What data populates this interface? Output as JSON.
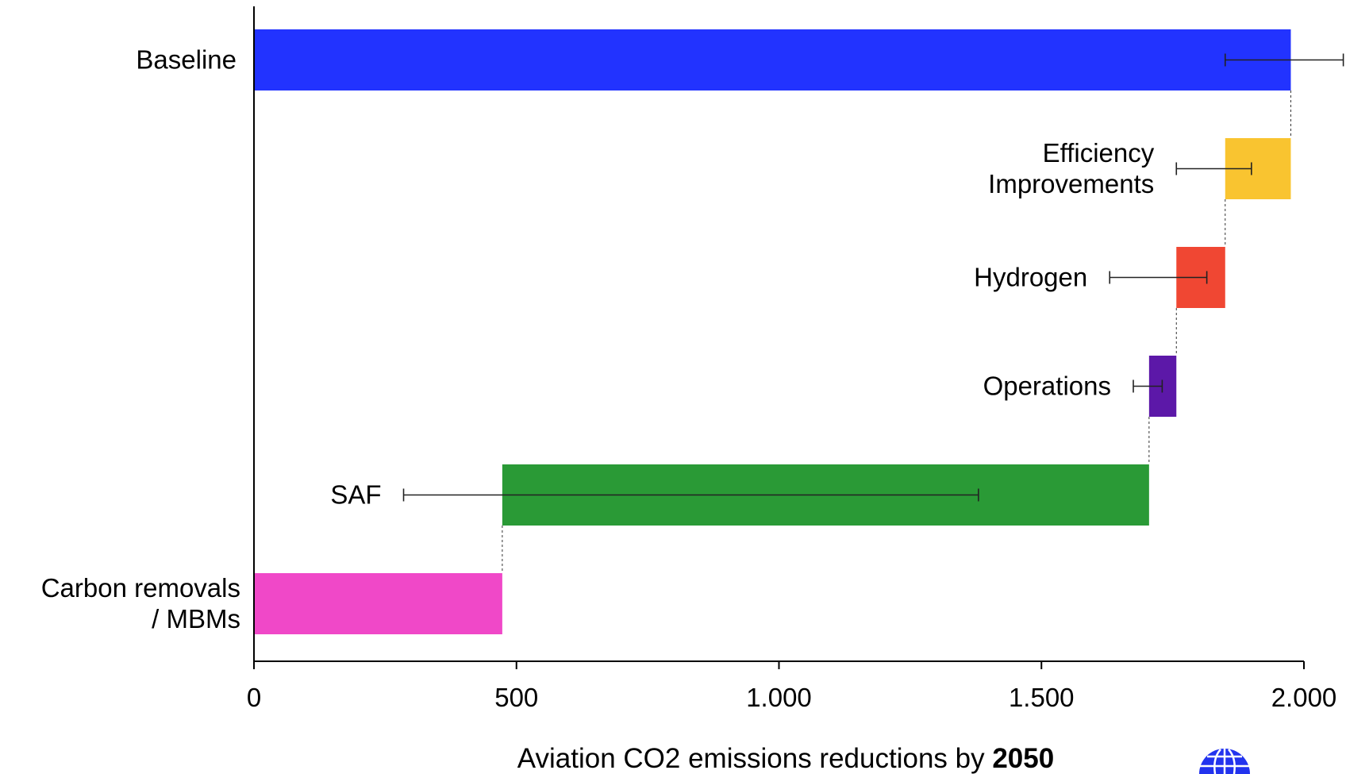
{
  "chart_data": {
    "type": "bar",
    "orientation": "horizontal-waterfall",
    "categories": [
      "Baseline",
      "Efficiency Improvements",
      "Hydrogen",
      "Operations",
      "SAF",
      "Carbon removals / MBMs"
    ],
    "category_label_lines": [
      [
        "Baseline"
      ],
      [
        "Efficiency",
        "Improvements"
      ],
      [
        "Hydrogen"
      ],
      [
        "Operations"
      ],
      [
        "SAF"
      ],
      [
        "Carbon removals",
        "/ MBMs"
      ]
    ],
    "bars": [
      {
        "name": "Baseline",
        "start": 0,
        "end": 1975,
        "color": "#2233ff",
        "error_low": 1850,
        "error_high": 2075
      },
      {
        "name": "Efficiency Improvements",
        "start": 1850,
        "end": 1975,
        "color": "#f9c430",
        "error_low": 1757,
        "error_high": 1900
      },
      {
        "name": "Hydrogen",
        "start": 1757,
        "end": 1850,
        "color": "#f04733",
        "error_low": 1630,
        "error_high": 1815
      },
      {
        "name": "Operations",
        "start": 1705,
        "end": 1757,
        "color": "#5c18a8",
        "error_low": 1675,
        "error_high": 1730
      },
      {
        "name": "SAF",
        "start": 473,
        "end": 1705,
        "color": "#2a9a36",
        "error_low": 285,
        "error_high": 1380
      },
      {
        "name": "Carbon removals / MBMs",
        "start": 0,
        "end": 473,
        "color": "#f048c8",
        "error_low": null,
        "error_high": null
      }
    ],
    "xlim": [
      0,
      2000
    ],
    "xticks": [
      0,
      500,
      1000,
      1500,
      2000
    ],
    "xtick_labels": [
      "0",
      "500",
      "1.000",
      "1.500",
      "2.000"
    ],
    "xlabel_prefix": "Aviation CO2 emissions reductions by ",
    "xlabel_bold": "2050",
    "grid": false,
    "connector_lines": true
  },
  "logo": {
    "name": "globe-logo",
    "color": "#2233ee"
  }
}
